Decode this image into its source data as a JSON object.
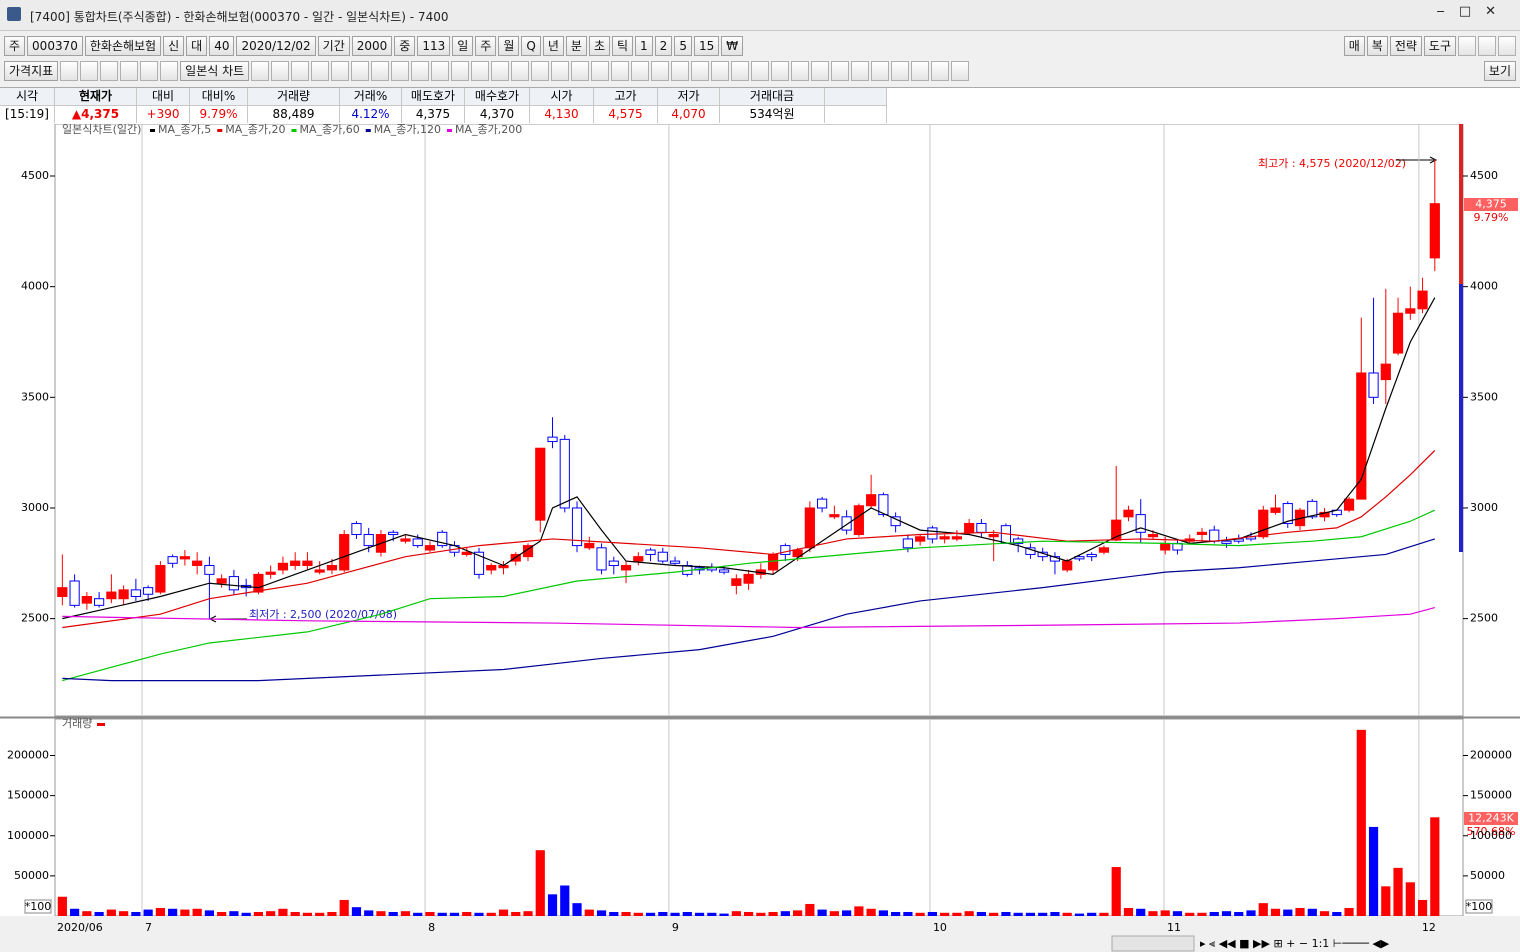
{
  "window": {
    "title": "[7400] 통합차트(주식종합) - 한화손해보험(000370 - 일간 - 일본식차트) - 7400"
  },
  "toolbar": {
    "row1_left": [
      "주",
      "000370",
      "한화손해보험",
      "신",
      "대",
      "40",
      "2020/12/02",
      "기간",
      "2000",
      "중",
      "113",
      "일",
      "주",
      "월",
      "Q",
      "년",
      "분",
      "초",
      "틱",
      "1",
      "2",
      "5",
      "15",
      "₩"
    ],
    "row1_right": [
      "매",
      "복",
      "전략",
      "도구"
    ],
    "row2_left": [
      "가격지표",
      "일본식 차트"
    ],
    "row2_right": [
      "보기"
    ]
  },
  "quote_table": {
    "headers": [
      "시각",
      "현재가",
      "대비",
      "대비%",
      "거래량",
      "거래%",
      "매도호가",
      "매수호가",
      "시가",
      "고가",
      "저가",
      "거래대금"
    ],
    "values": [
      "[15:19]",
      "▲4,375",
      "+390",
      "9.79%",
      "88,489",
      "4.12%",
      "4,375",
      "4,370",
      "4,130",
      "4,575",
      "4,070",
      "534억원"
    ]
  },
  "chart_data": [
    {
      "type": "candlestick",
      "title": "일본식차트(일간)",
      "up_color": "#ff0000",
      "down_color": "#0000ff",
      "ylim": [
        2060,
        4735
      ],
      "yticks": [
        2500,
        3000,
        3500,
        4000,
        4500
      ],
      "xlim": [
        -0.6,
        114.3
      ],
      "ohlc": [
        [
          2600,
          2790,
          2560,
          2640
        ],
        [
          2670,
          2700,
          2550,
          2560
        ],
        [
          2570,
          2620,
          2540,
          2600
        ],
        [
          2590,
          2620,
          2550,
          2560
        ],
        [
          2590,
          2700,
          2570,
          2620
        ],
        [
          2590,
          2650,
          2560,
          2630
        ],
        [
          2630,
          2680,
          2580,
          2600
        ],
        [
          2640,
          2650,
          2580,
          2610
        ],
        [
          2620,
          2760,
          2610,
          2740
        ],
        [
          2780,
          2790,
          2730,
          2750
        ],
        [
          2770,
          2810,
          2740,
          2780
        ],
        [
          2740,
          2800,
          2700,
          2760
        ],
        [
          2740,
          2780,
          2500,
          2700
        ],
        [
          2660,
          2700,
          2640,
          2680
        ],
        [
          2690,
          2720,
          2610,
          2630
        ],
        [
          2650,
          2680,
          2600,
          2640
        ],
        [
          2620,
          2710,
          2610,
          2700
        ],
        [
          2700,
          2740,
          2680,
          2710
        ],
        [
          2720,
          2780,
          2700,
          2750
        ],
        [
          2740,
          2800,
          2720,
          2760
        ],
        [
          2740,
          2800,
          2720,
          2760
        ],
        [
          2710,
          2760,
          2700,
          2720
        ],
        [
          2720,
          2770,
          2700,
          2740
        ],
        [
          2720,
          2900,
          2710,
          2880
        ],
        [
          2930,
          2940,
          2860,
          2880
        ],
        [
          2880,
          2910,
          2800,
          2830
        ],
        [
          2800,
          2900,
          2780,
          2880
        ],
        [
          2890,
          2900,
          2850,
          2880
        ],
        [
          2850,
          2880,
          2840,
          2860
        ],
        [
          2860,
          2880,
          2820,
          2830
        ],
        [
          2810,
          2850,
          2800,
          2830
        ],
        [
          2890,
          2900,
          2820,
          2830
        ],
        [
          2830,
          2850,
          2780,
          2800
        ],
        [
          2790,
          2820,
          2780,
          2800
        ],
        [
          2800,
          2820,
          2680,
          2700
        ],
        [
          2720,
          2750,
          2700,
          2740
        ],
        [
          2730,
          2760,
          2700,
          2740
        ],
        [
          2760,
          2800,
          2740,
          2790
        ],
        [
          2780,
          2840,
          2760,
          2830
        ],
        [
          2945,
          3270,
          2890,
          3270
        ],
        [
          3320,
          3410,
          3270,
          3300
        ],
        [
          3310,
          3330,
          2980,
          3000
        ],
        [
          3000,
          3030,
          2800,
          2830
        ],
        [
          2820,
          2870,
          2810,
          2840
        ],
        [
          2820,
          2840,
          2700,
          2720
        ],
        [
          2760,
          2780,
          2700,
          2740
        ],
        [
          2720,
          2760,
          2660,
          2740
        ],
        [
          2760,
          2800,
          2740,
          2780
        ],
        [
          2810,
          2820,
          2760,
          2790
        ],
        [
          2800,
          2820,
          2750,
          2760
        ],
        [
          2760,
          2780,
          2740,
          2750
        ],
        [
          2740,
          2760,
          2690,
          2700
        ],
        [
          2730,
          2740,
          2700,
          2720
        ],
        [
          2730,
          2750,
          2710,
          2720
        ],
        [
          2720,
          2740,
          2700,
          2710
        ],
        [
          2650,
          2700,
          2610,
          2680
        ],
        [
          2660,
          2720,
          2630,
          2700
        ],
        [
          2700,
          2750,
          2680,
          2720
        ],
        [
          2720,
          2800,
          2700,
          2790
        ],
        [
          2830,
          2840,
          2760,
          2790
        ],
        [
          2780,
          2820,
          2760,
          2810
        ],
        [
          2820,
          3030,
          2800,
          3000
        ],
        [
          3040,
          3050,
          2980,
          3000
        ],
        [
          2960,
          3010,
          2950,
          2970
        ],
        [
          2960,
          2990,
          2880,
          2900
        ],
        [
          2880,
          3020,
          2870,
          3010
        ],
        [
          3010,
          3150,
          3000,
          3060
        ],
        [
          3060,
          3070,
          2960,
          2970
        ],
        [
          2960,
          2980,
          2890,
          2920
        ],
        [
          2860,
          2880,
          2800,
          2820
        ],
        [
          2850,
          2880,
          2830,
          2870
        ],
        [
          2910,
          2920,
          2840,
          2860
        ],
        [
          2860,
          2880,
          2840,
          2870
        ],
        [
          2860,
          2900,
          2850,
          2870
        ],
        [
          2890,
          2950,
          2880,
          2930
        ],
        [
          2930,
          2950,
          2870,
          2890
        ],
        [
          2870,
          2900,
          2760,
          2880
        ],
        [
          2920,
          2930,
          2840,
          2840
        ],
        [
          2860,
          2870,
          2800,
          2840
        ],
        [
          2820,
          2840,
          2770,
          2790
        ],
        [
          2800,
          2820,
          2760,
          2780
        ],
        [
          2780,
          2800,
          2700,
          2760
        ],
        [
          2720,
          2770,
          2710,
          2760
        ],
        [
          2780,
          2790,
          2760,
          2770
        ],
        [
          2790,
          2800,
          2760,
          2780
        ],
        [
          2800,
          2830,
          2790,
          2820
        ],
        [
          2855,
          3190,
          2850,
          2945
        ],
        [
          2960,
          3010,
          2940,
          2990
        ],
        [
          2970,
          3040,
          2840,
          2890
        ],
        [
          2870,
          2900,
          2860,
          2880
        ],
        [
          2810,
          2870,
          2790,
          2840
        ],
        [
          2840,
          2860,
          2790,
          2810
        ],
        [
          2850,
          2880,
          2840,
          2860
        ],
        [
          2880,
          2910,
          2850,
          2890
        ],
        [
          2900,
          2920,
          2840,
          2850
        ],
        [
          2850,
          2870,
          2820,
          2840
        ],
        [
          2860,
          2880,
          2840,
          2850
        ],
        [
          2870,
          2890,
          2850,
          2860
        ],
        [
          2870,
          3010,
          2860,
          2990
        ],
        [
          2980,
          3060,
          2970,
          3000
        ],
        [
          3020,
          3030,
          2910,
          2930
        ],
        [
          2920,
          3000,
          2900,
          2990
        ],
        [
          3030,
          3040,
          2950,
          2960
        ],
        [
          2960,
          3000,
          2940,
          2980
        ],
        [
          2990,
          2990,
          2960,
          2970
        ],
        [
          2990,
          3050,
          2980,
          3040
        ],
        [
          3040,
          3860,
          3040,
          3610
        ],
        [
          3610,
          3950,
          3470,
          3500
        ],
        [
          3580,
          3990,
          3470,
          3650
        ],
        [
          3700,
          3950,
          3690,
          3880
        ],
        [
          3880,
          4000,
          3850,
          3900
        ],
        [
          3900,
          4040,
          3880,
          3980
        ],
        [
          4130,
          4575,
          4070,
          4375
        ]
      ],
      "series": [
        {
          "name": "MA_종가,5",
          "color": "#000000",
          "x": [
            0,
            8,
            12,
            16,
            20,
            24,
            28,
            32,
            36,
            39,
            40,
            42,
            44,
            46,
            50,
            54,
            58,
            62,
            66,
            70,
            74,
            78,
            82,
            86,
            88,
            92,
            96,
            100,
            104,
            106,
            108,
            110,
            112
          ],
          "values": [
            2500,
            2600,
            2660,
            2640,
            2720,
            2800,
            2880,
            2830,
            2740,
            2850,
            3000,
            3050,
            2900,
            2760,
            2740,
            2730,
            2700,
            2850,
            3000,
            2900,
            2880,
            2830,
            2760,
            2870,
            2910,
            2840,
            2860,
            2940,
            2990,
            3130,
            3450,
            3750,
            3950
          ]
        },
        {
          "name": "MA_종가,20",
          "color": "#e00000",
          "x": [
            0,
            8,
            12,
            20,
            28,
            34,
            40,
            46,
            52,
            58,
            64,
            70,
            76,
            82,
            88,
            94,
            100,
            104,
            106,
            108,
            110,
            112
          ],
          "values": [
            2460,
            2520,
            2590,
            2660,
            2780,
            2830,
            2860,
            2840,
            2820,
            2790,
            2860,
            2880,
            2890,
            2850,
            2860,
            2850,
            2890,
            2910,
            2960,
            3050,
            3150,
            3260
          ]
        },
        {
          "name": "MA_종가,60",
          "color": "#00c800",
          "x": [
            0,
            8,
            12,
            20,
            26,
            30,
            36,
            42,
            50,
            56,
            62,
            70,
            80,
            90,
            96,
            102,
            106,
            110,
            112
          ],
          "values": [
            2220,
            2340,
            2390,
            2440,
            2520,
            2590,
            2600,
            2670,
            2710,
            2750,
            2780,
            2820,
            2850,
            2840,
            2830,
            2850,
            2870,
            2940,
            2990
          ]
        },
        {
          "name": "MA_종가,120",
          "color": "#000096",
          "x": [
            0,
            4,
            16,
            28,
            36,
            44,
            52,
            58,
            64,
            70,
            80,
            90,
            96,
            102,
            108,
            112
          ],
          "values": [
            2230,
            2220,
            2220,
            2250,
            2270,
            2320,
            2360,
            2420,
            2520,
            2580,
            2640,
            2710,
            2730,
            2760,
            2790,
            2860
          ]
        },
        {
          "name": "MA_종가,200",
          "color": "#e000e0",
          "x": [
            0,
            20,
            40,
            60,
            80,
            96,
            104,
            110,
            112
          ],
          "values": [
            2510,
            2490,
            2480,
            2460,
            2470,
            2480,
            2500,
            2520,
            2550
          ]
        }
      ],
      "annotations": [
        "최고가 : 4,575 (2020/12/02)",
        "최저가 : 2,500 (2020/07/08)"
      ],
      "last_price_label": "4,375",
      "change_label": "9.79%"
    },
    {
      "type": "bar",
      "title": "거래량",
      "ylim": [
        0,
        245500
      ],
      "yticks": [
        50000,
        100000,
        150000,
        200000
      ],
      "xlim": [
        -0.6,
        114.3
      ],
      "values": [
        24000,
        9000,
        6000,
        5000,
        8000,
        6000,
        5000,
        8000,
        10000,
        9000,
        8000,
        9000,
        7000,
        5000,
        6000,
        4000,
        5000,
        6000,
        9000,
        5000,
        4000,
        4000,
        5000,
        20000,
        11000,
        7000,
        6000,
        5000,
        6000,
        4000,
        5000,
        4000,
        4000,
        5000,
        4000,
        4000,
        8000,
        5000,
        6000,
        82000,
        27000,
        38000,
        16000,
        8000,
        7000,
        5000,
        5000,
        4000,
        4000,
        5000,
        4000,
        5000,
        4000,
        4000,
        3000,
        6000,
        5000,
        4000,
        5000,
        6000,
        7000,
        15000,
        8000,
        6000,
        7000,
        12000,
        9000,
        7000,
        5000,
        5000,
        4000,
        5000,
        4000,
        4000,
        6000,
        5000,
        4000,
        5000,
        4000,
        4000,
        4000,
        5000,
        4000,
        3000,
        4000,
        4000,
        61000,
        10000,
        9000,
        6000,
        7000,
        6000,
        4000,
        4000,
        5000,
        6000,
        5000,
        7000,
        16000,
        9000,
        8000,
        10000,
        9000,
        6000,
        5000,
        10000,
        232000,
        111000,
        37000,
        60000,
        42000,
        20000,
        123000
      ],
      "unit_label": "*100",
      "last_label": "12,243K",
      "ratio_label": "570.68%",
      "x_start_label": "2020/06",
      "xticks": [
        {
          "value": 6.5,
          "label": "7"
        },
        {
          "value": 29.6,
          "label": "8"
        },
        {
          "value": 49.5,
          "label": "9"
        },
        {
          "value": 70.8,
          "label": "10"
        },
        {
          "value": 89.9,
          "label": "11"
        },
        {
          "value": 110.7,
          "label": "12"
        }
      ]
    }
  ]
}
